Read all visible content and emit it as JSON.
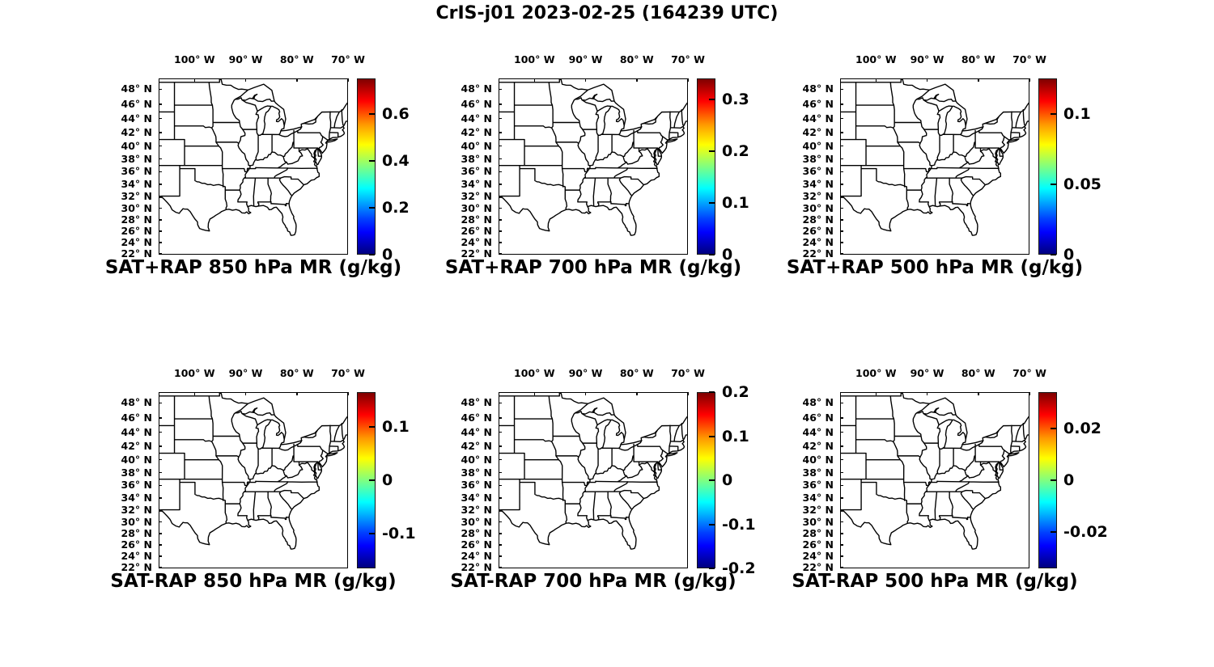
{
  "figure": {
    "title": "CrIS-j01 2023-02-25 (164239 UTC)"
  },
  "axes": {
    "lon_ticks": [
      {
        "value_deg_w": 100,
        "label": "100° W"
      },
      {
        "value_deg_w": 90,
        "label": "90° W"
      },
      {
        "value_deg_w": 80,
        "label": "80° W"
      },
      {
        "value_deg_w": 70,
        "label": "70° W"
      }
    ],
    "lat_ticks": [
      {
        "value_deg_n": 48,
        "label": "48° N"
      },
      {
        "value_deg_n": 46,
        "label": "46° N"
      },
      {
        "value_deg_n": 44,
        "label": "44° N"
      },
      {
        "value_deg_n": 42,
        "label": "42° N"
      },
      {
        "value_deg_n": 40,
        "label": "40° N"
      },
      {
        "value_deg_n": 38,
        "label": "38° N"
      },
      {
        "value_deg_n": 36,
        "label": "36° N"
      },
      {
        "value_deg_n": 34,
        "label": "34° N"
      },
      {
        "value_deg_n": 32,
        "label": "32° N"
      },
      {
        "value_deg_n": 30,
        "label": "30° N"
      },
      {
        "value_deg_n": 28,
        "label": "28° N"
      },
      {
        "value_deg_n": 26,
        "label": "26° N"
      },
      {
        "value_deg_n": 24,
        "label": "24° N"
      },
      {
        "value_deg_n": 22,
        "label": "22° N"
      }
    ]
  },
  "panels": [
    {
      "title": "SAT+RAP 850 hPa MR (g/kg)",
      "colorbar": {
        "min": 0,
        "max": 0.75,
        "ticks": [
          {
            "value": 0,
            "label": "0"
          },
          {
            "value": 0.2,
            "label": "0.2"
          },
          {
            "value": 0.4,
            "label": "0.4"
          },
          {
            "value": 0.6,
            "label": "0.6"
          }
        ]
      }
    },
    {
      "title": "SAT+RAP 700 hPa MR (g/kg)",
      "colorbar": {
        "min": 0,
        "max": 0.34,
        "ticks": [
          {
            "value": 0,
            "label": "0"
          },
          {
            "value": 0.1,
            "label": "0.1"
          },
          {
            "value": 0.2,
            "label": "0.2"
          },
          {
            "value": 0.3,
            "label": "0.3"
          }
        ]
      }
    },
    {
      "title": "SAT+RAP 500 hPa MR (g/kg)",
      "colorbar": {
        "min": 0,
        "max": 0.125,
        "ticks": [
          {
            "value": 0,
            "label": "0"
          },
          {
            "value": 0.05,
            "label": "0.05"
          },
          {
            "value": 0.1,
            "label": "0.1"
          }
        ]
      }
    },
    {
      "title": "SAT-RAP 850 hPa MR (g/kg)",
      "colorbar": {
        "min": -0.165,
        "max": 0.165,
        "ticks": [
          {
            "value": -0.1,
            "label": "-0.1"
          },
          {
            "value": 0,
            "label": "0"
          },
          {
            "value": 0.1,
            "label": "0.1"
          }
        ]
      }
    },
    {
      "title": "SAT-RAP 700 hPa MR (g/kg)",
      "colorbar": {
        "min": -0.2,
        "max": 0.2,
        "ticks": [
          {
            "value": -0.2,
            "label": "-0.2"
          },
          {
            "value": -0.1,
            "label": "-0.1"
          },
          {
            "value": 0,
            "label": "0"
          },
          {
            "value": 0.1,
            "label": "0.1"
          },
          {
            "value": 0.2,
            "label": "0.2"
          }
        ]
      }
    },
    {
      "title": "SAT-RAP 500 hPa MR (g/kg)",
      "colorbar": {
        "min": -0.034,
        "max": 0.034,
        "ticks": [
          {
            "value": -0.02,
            "label": "-0.02"
          },
          {
            "value": 0,
            "label": "0"
          },
          {
            "value": 0.02,
            "label": "0.02"
          }
        ]
      }
    }
  ],
  "chart_data": {
    "type": "map",
    "figure_title": "CrIS-j01 2023-02-25 (164239 UTC)",
    "layout": "2 rows x 3 columns of identical eastern-US basemaps, colorbar right of each map, lon labels above each map, lat labels left of each map, panel title below each map",
    "shared_axes": {
      "lon_ticks_deg_w": [
        100,
        90,
        80,
        70
      ],
      "lat_ticks_deg_n": [
        48,
        46,
        44,
        42,
        40,
        38,
        36,
        34,
        32,
        30,
        28,
        26,
        24,
        22
      ],
      "map_extent_lon_deg_w": [
        107,
        70
      ],
      "map_extent_lat_deg_n": [
        21.8,
        49.4
      ],
      "projection": "mercator-like, US state boundaries drawn in black on white"
    },
    "colormap": "jet",
    "panels": [
      {
        "title": "SAT+RAP 850 hPa MR (g/kg)",
        "colorbar_range": [
          0,
          0.75
        ],
        "colorbar_ticks": [
          0,
          0.2,
          0.4,
          0.6
        ]
      },
      {
        "title": "SAT+RAP 700 hPa MR (g/kg)",
        "colorbar_range": [
          0,
          0.34
        ],
        "colorbar_ticks": [
          0,
          0.1,
          0.2,
          0.3
        ]
      },
      {
        "title": "SAT+RAP 500 hPa MR (g/kg)",
        "colorbar_range": [
          0,
          0.125
        ],
        "colorbar_ticks": [
          0,
          0.05,
          0.1
        ]
      },
      {
        "title": "SAT-RAP 850 hPa MR (g/kg)",
        "colorbar_range": [
          -0.165,
          0.165
        ],
        "colorbar_ticks": [
          -0.1,
          0,
          0.1
        ]
      },
      {
        "title": "SAT-RAP 700 hPa MR (g/kg)",
        "colorbar_range": [
          -0.2,
          0.2
        ],
        "colorbar_ticks": [
          -0.2,
          -0.1,
          0,
          0.1,
          0.2
        ]
      },
      {
        "title": "SAT-RAP 500 hPa MR (g/kg)",
        "colorbar_range": [
          -0.034,
          0.034
        ],
        "colorbar_ticks": [
          -0.02,
          0,
          0.02
        ]
      }
    ],
    "plotted_points": "none visible — each panel shows only the empty state-boundary basemap and its colorbar scale"
  }
}
